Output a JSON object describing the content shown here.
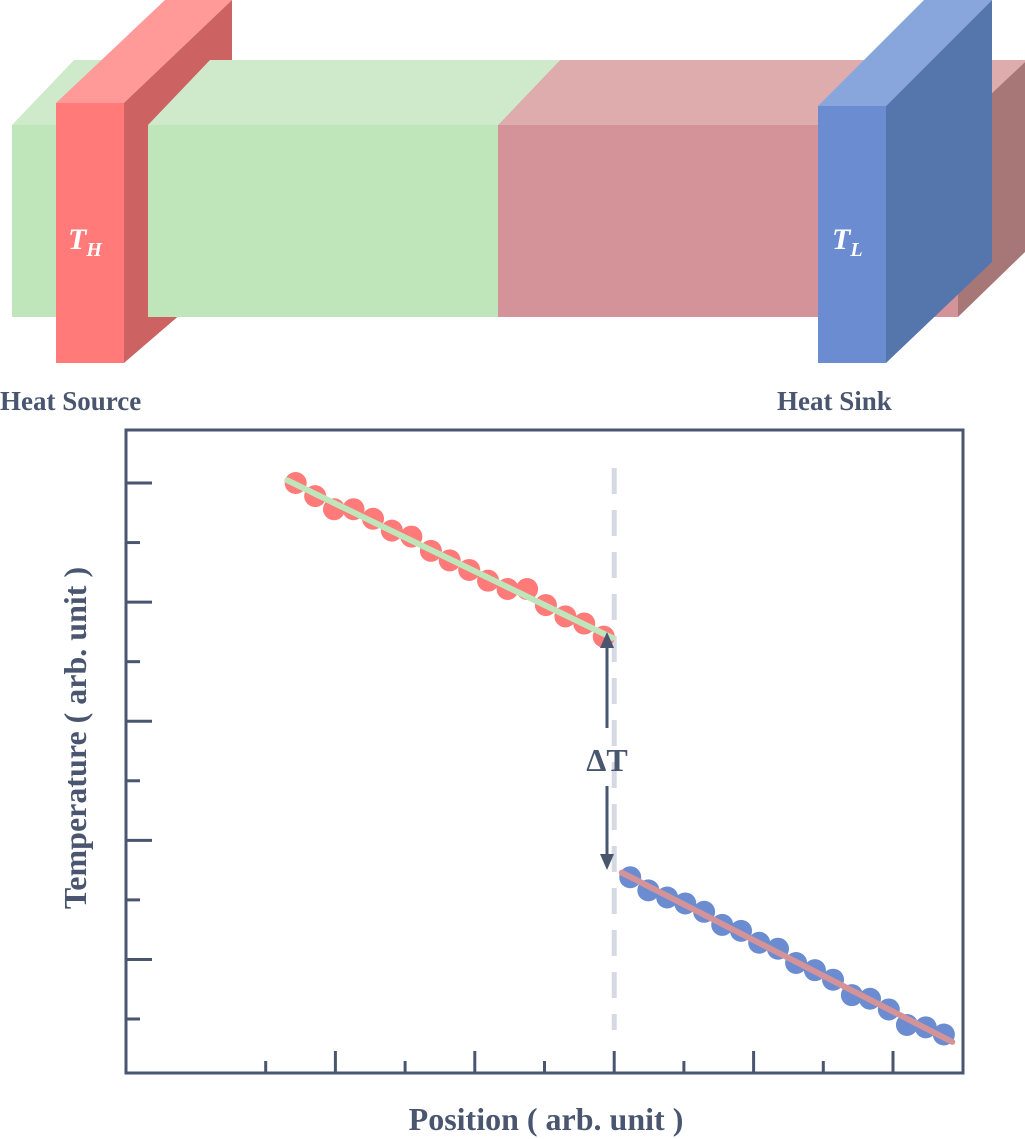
{
  "device": {
    "hot_label_main": "T",
    "hot_label_sub": "H",
    "cold_label_main": "T",
    "cold_label_sub": "L",
    "heat_source_label": "Heat Source",
    "heat_sink_label": "Heat Sink",
    "colors": {
      "green_material": "#bfe6bb",
      "pink_material": "#d49399",
      "hot_block": "#ff7a78",
      "cold_block": "#6b8cd1"
    }
  },
  "chart_data": {
    "type": "scatter",
    "xlabel": "Position ( arb. unit )",
    "ylabel": "Temperature ( arb. unit )",
    "xlim": [
      0,
      12
    ],
    "ylim": [
      0,
      11
    ],
    "interface_x": 6,
    "annotation": "ΔT",
    "series": [
      {
        "color": "#ff7a78",
        "fit_color": "#bfe6bb",
        "x": [
          1.43,
          1.71,
          1.98,
          2.26,
          2.54,
          2.81,
          3.09,
          3.37,
          3.64,
          3.92,
          4.19,
          4.47,
          4.75,
          5.02,
          5.3,
          5.57,
          5.85
        ],
        "y": [
          10.0,
          9.78,
          9.56,
          9.56,
          9.4,
          9.2,
          9.1,
          8.86,
          8.7,
          8.54,
          8.36,
          8.22,
          8.22,
          7.95,
          7.76,
          7.64,
          7.42
        ]
      },
      {
        "color": "#6b8cd1",
        "fit_color": "#d49399",
        "x": [
          6.23,
          6.49,
          6.76,
          7.02,
          7.29,
          7.55,
          7.82,
          8.08,
          8.35,
          8.61,
          8.88,
          9.14,
          9.41,
          9.67,
          9.94,
          10.2,
          10.47,
          10.73
        ],
        "y": [
          3.38,
          3.16,
          3.04,
          2.94,
          2.8,
          2.58,
          2.48,
          2.28,
          2.18,
          1.94,
          1.82,
          1.66,
          1.4,
          1.34,
          1.16,
          0.9,
          0.86,
          0.74
        ]
      }
    ]
  }
}
